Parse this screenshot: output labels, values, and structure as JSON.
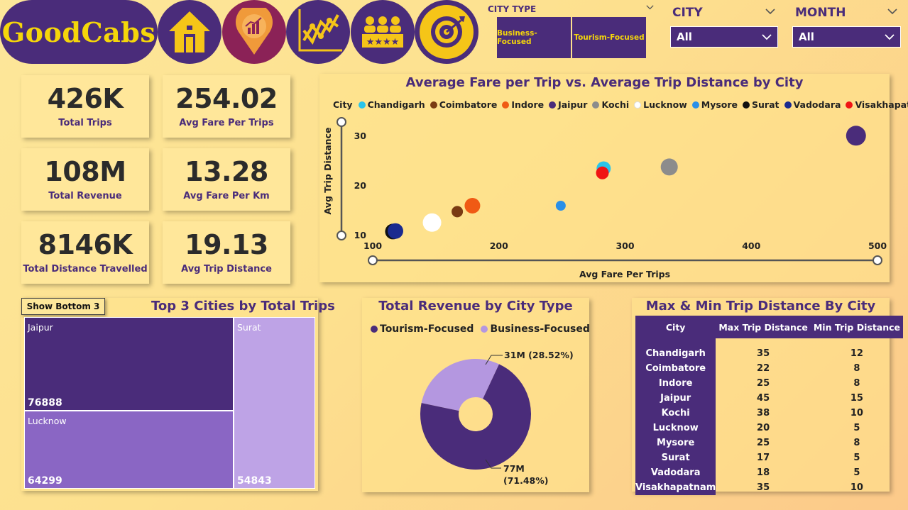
{
  "brand": {
    "name": "GoodCabs"
  },
  "nav": {
    "icons": [
      "home-icon",
      "location-chart-icon",
      "line-chart-icon",
      "rating-stars-icon",
      "target-icon"
    ]
  },
  "slicers": {
    "city_type": {
      "title": "CITY TYPE",
      "options": [
        "Business-Focused",
        "Tourism-Focused"
      ]
    },
    "city": {
      "title": "CITY",
      "value": "All"
    },
    "month": {
      "title": "MONTH",
      "value": "All"
    }
  },
  "kpis": [
    {
      "value": "426K",
      "label": "Total Trips"
    },
    {
      "value": "254.02",
      "label": "Avg Fare Per Trips"
    },
    {
      "value": "108M",
      "label": "Total Revenue"
    },
    {
      "value": "13.28",
      "label": "Avg Fare Per Km"
    },
    {
      "value": "8146K",
      "label": "Total Distance Travelled"
    },
    {
      "value": "19.13",
      "label": "Avg Trip Distance"
    }
  ],
  "scatter": {
    "title": "Average Fare per Trip vs. Average Trip Distance by City",
    "legend_title": "City",
    "xlabel": "Avg Fare Per Trips",
    "ylabel": "Avg Trip Distance",
    "xticks": [
      "100",
      "200",
      "300",
      "400",
      "500"
    ],
    "yticks": [
      "10",
      "20",
      "30"
    ]
  },
  "treemap": {
    "title": "Top 3 Cities by Total Trips",
    "button": "Show Bottom 3",
    "cells": [
      {
        "name": "Jaipur",
        "value": "76888"
      },
      {
        "name": "Lucknow",
        "value": "64299"
      },
      {
        "name": "Surat",
        "value": "54843"
      }
    ]
  },
  "donut": {
    "title": "Total Revenue by City Type",
    "legend": [
      "Tourism-Focused",
      "Business-Focused"
    ],
    "labels": {
      "business": "31M (28.52%)",
      "tourism_value": "77M",
      "tourism_pct": "(71.48%)"
    }
  },
  "table": {
    "title": "Max & Min Trip Distance By City",
    "headers": [
      "City",
      "Max Trip Distance",
      "Min Trip Distance"
    ],
    "rows": [
      [
        "Chandigarh",
        "35",
        "12"
      ],
      [
        "Coimbatore",
        "22",
        "8"
      ],
      [
        "Indore",
        "25",
        "8"
      ],
      [
        "Jaipur",
        "45",
        "15"
      ],
      [
        "Kochi",
        "38",
        "10"
      ],
      [
        "Lucknow",
        "20",
        "5"
      ],
      [
        "Mysore",
        "25",
        "8"
      ],
      [
        "Surat",
        "17",
        "5"
      ],
      [
        "Vadodara",
        "18",
        "5"
      ],
      [
        "Visakhapatnam",
        "35",
        "10"
      ]
    ]
  },
  "colors": {
    "primary": "#4a2c7a",
    "accent": "#f5d60a",
    "business": "#b497e0",
    "tourism": "#4a2c7a"
  },
  "chart_data": [
    {
      "type": "scatter",
      "title": "Average Fare per Trip vs. Average Trip Distance by City",
      "xlabel": "Avg Fare Per Trips",
      "ylabel": "Avg Trip Distance",
      "xlim": [
        100,
        500
      ],
      "ylim": [
        10,
        30
      ],
      "legend_position": "top-left",
      "series": [
        {
          "name": "Chandigarh",
          "color": "#29c4ea",
          "x": 283,
          "y": 23.5
        },
        {
          "name": "Coimbatore",
          "color": "#7a3b12",
          "x": 167,
          "y": 14.8
        },
        {
          "name": "Indore",
          "color": "#f05a14",
          "x": 179,
          "y": 16.0
        },
        {
          "name": "Jaipur",
          "color": "#4a2c7a",
          "x": 483,
          "y": 30.1
        },
        {
          "name": "Kochi",
          "color": "#8c8c8c",
          "x": 335,
          "y": 23.8
        },
        {
          "name": "Lucknow",
          "color": "#ffffff",
          "x": 147,
          "y": 12.6
        },
        {
          "name": "Mysore",
          "color": "#2a8fe8",
          "x": 249,
          "y": 16.0
        },
        {
          "name": "Surat",
          "color": "#111111",
          "x": 116,
          "y": 10.8
        },
        {
          "name": "Vadodara",
          "color": "#1a2a8f",
          "x": 118,
          "y": 10.9
        },
        {
          "name": "Visakhapatnam",
          "color": "#f01414",
          "x": 282,
          "y": 22.6
        }
      ]
    },
    {
      "type": "treemap",
      "title": "Top 3 Cities by Total Trips",
      "categories": [
        "Jaipur",
        "Lucknow",
        "Surat"
      ],
      "values": [
        76888,
        64299,
        54843
      ]
    },
    {
      "type": "pie",
      "title": "Total Revenue by City Type",
      "categories": [
        "Tourism-Focused",
        "Business-Focused"
      ],
      "values": [
        77,
        31
      ],
      "percent": [
        71.48,
        28.52
      ],
      "unit": "M"
    }
  ]
}
